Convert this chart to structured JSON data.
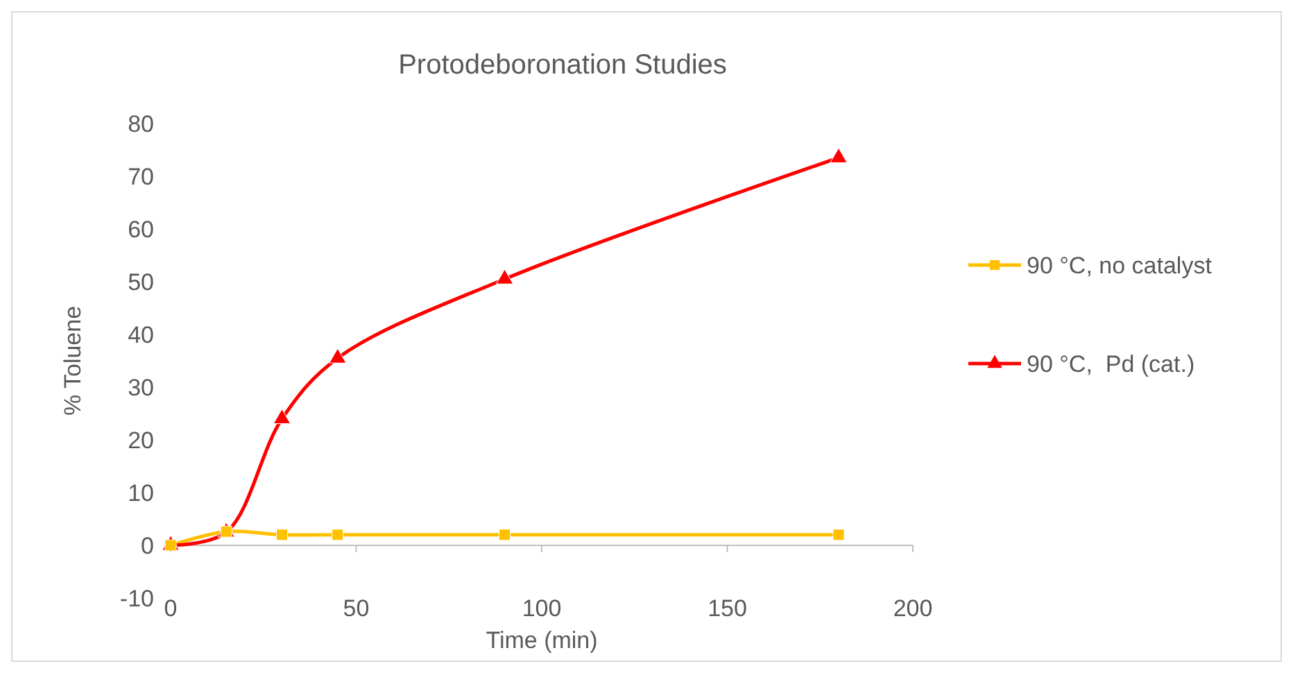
{
  "chart_data": {
    "type": "line",
    "title": "Protodeboronation Studies",
    "xlabel": "Time (min)",
    "ylabel": "% Toluene",
    "x": [
      0,
      15,
      30,
      45,
      90,
      180
    ],
    "series": [
      {
        "name": "90 °C, no catalyst",
        "color": "#ffc000",
        "marker": "square",
        "values": [
          0,
          2.6,
          2,
          2,
          2,
          2
        ]
      },
      {
        "name": "90 °C,  Pd (cat.)",
        "color": "#ff0000",
        "marker": "triangle",
        "values": [
          0,
          2.5,
          24,
          35.5,
          50.5,
          73.5
        ]
      }
    ],
    "xlim": [
      0,
      200
    ],
    "xticks": [
      0,
      50,
      100,
      150,
      200
    ],
    "ylim": [
      -10,
      80
    ],
    "yticks": [
      -10,
      0,
      10,
      20,
      30,
      40,
      50,
      60,
      70,
      80
    ],
    "grid": false,
    "legend": "right"
  }
}
